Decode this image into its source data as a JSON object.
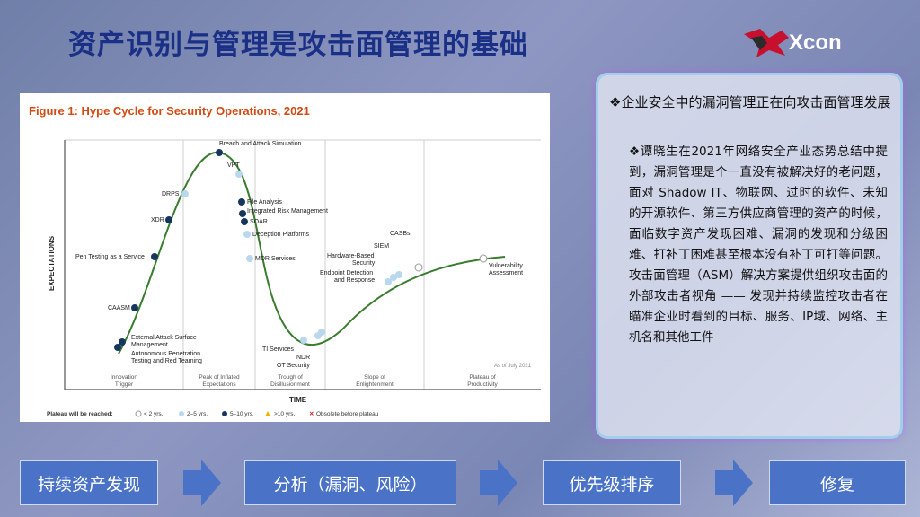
{
  "slide": {
    "title": "资产识别与管理是攻击面管理的基础",
    "logo_text": "Xcon"
  },
  "figure": {
    "title": "Figure 1: Hype Cycle for Security Operations, 2021",
    "y_axis_label": "EXPECTATIONS",
    "x_axis_label": "TIME",
    "date_note": "As of July 2021",
    "phases": [
      "Innovation\nTrigger",
      "Peak of Inflated\nExpectations",
      "Trough of\nDisillusionment",
      "Slope of\nEnlightenment",
      "Plateau of\nProductivity"
    ],
    "technologies": [
      "Breach and Attack Simulation",
      "VPT",
      "DRPS",
      "File Analysis",
      "Integrated Risk Management",
      "SOAR",
      "XDR",
      "Deception Platforms",
      "Pen Testing as a Service",
      "MDR Services",
      "CAASM",
      "External Attack Surface\nManagement",
      "Autonomous Penetration\nTesting and Red Teaming",
      "TI Services",
      "NDR",
      "OT Security",
      "Hardware-Based\nSecurity",
      "Endpoint Detection\nand Response",
      "SIEM",
      "CASBs",
      "Vulnerability\nAssessment"
    ],
    "legend": {
      "heading": "Plateau will be reached:",
      "items": [
        "< 2 yrs.",
        "2–5 yrs.",
        "5–10 yrs.",
        ">10 yrs.",
        "Obsolete before plateau"
      ],
      "colors": [
        "#ffffff",
        "#b8d8ee",
        "#17365d",
        "#f0b400",
        "#d62020"
      ]
    }
  },
  "textbox": {
    "lead": "❖企业安全中的漏洞管理正在向攻击面管理发展",
    "sub": "❖谭晓生在2021年网络安全产业态势总结中提到，漏洞管理是个一直没有被解决好的老问题，面对 Shadow IT、物联网、过时的软件、未知的开源软件、第三方供应商管理的资产的时候，面临数字资产发现困难、漏洞的发现和分级困难、打补丁困难甚至根本没有补丁可打等问题。攻击面管理（ASM）解决方案提供组织攻击面的外部攻击者视角 —— 发现并持续监控攻击者在瞄准企业时看到的目标、服务、IP域、网络、主机名和其他工件"
  },
  "flow": [
    "持续资产发现",
    "分析（漏洞、风险）",
    "优先级排序",
    "修复"
  ]
}
